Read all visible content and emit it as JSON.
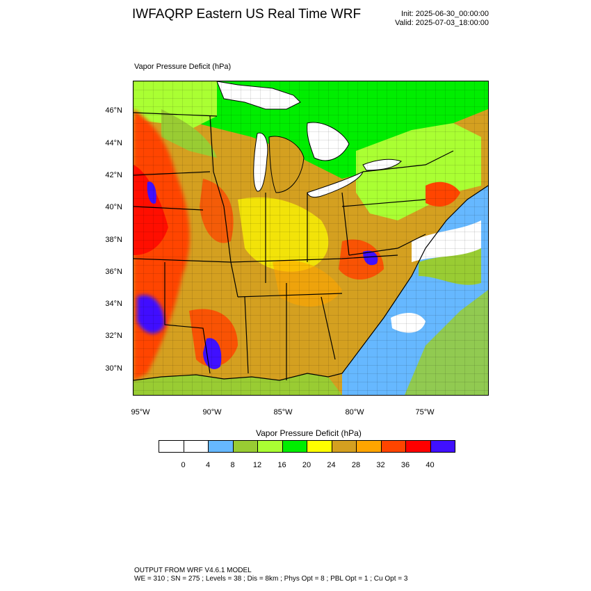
{
  "header": {
    "title": "IWFAQRP Eastern US Real Time WRF",
    "init": "Init: 2025-06-30_00:00:00",
    "valid": "Valid: 2025-07-03_18:00:00"
  },
  "plot": {
    "label": "Vapor Pressure Deficit   (hPa)",
    "lat_labels": [
      "46°N",
      "44°N",
      "42°N",
      "40°N",
      "38°N",
      "36°N",
      "34°N",
      "32°N",
      "30°N"
    ],
    "lon_labels": [
      "95°W",
      "90°W",
      "85°W",
      "80°W",
      "75°W"
    ]
  },
  "colorbar": {
    "title": "Vapor Pressure Deficit  (hPa)",
    "colors": [
      "#ffffff",
      "#ffffff",
      "#66b8ff",
      "#99cc33",
      "#aaff33",
      "#00ee00",
      "#ffff00",
      "#d4a020",
      "#ffa500",
      "#ff4500",
      "#ff0000",
      "#4010ff"
    ],
    "ticks": [
      "0",
      "4",
      "8",
      "12",
      "16",
      "20",
      "24",
      "28",
      "32",
      "36",
      "40"
    ]
  },
  "footer": {
    "line1": "OUTPUT FROM WRF V4.6.1 MODEL",
    "line2": "WE = 310 ; SN = 275 ; Levels = 38 ; Dis = 8km ; Phys Opt = 8 ; PBL Opt = 1 ; Cu Opt = 3"
  }
}
